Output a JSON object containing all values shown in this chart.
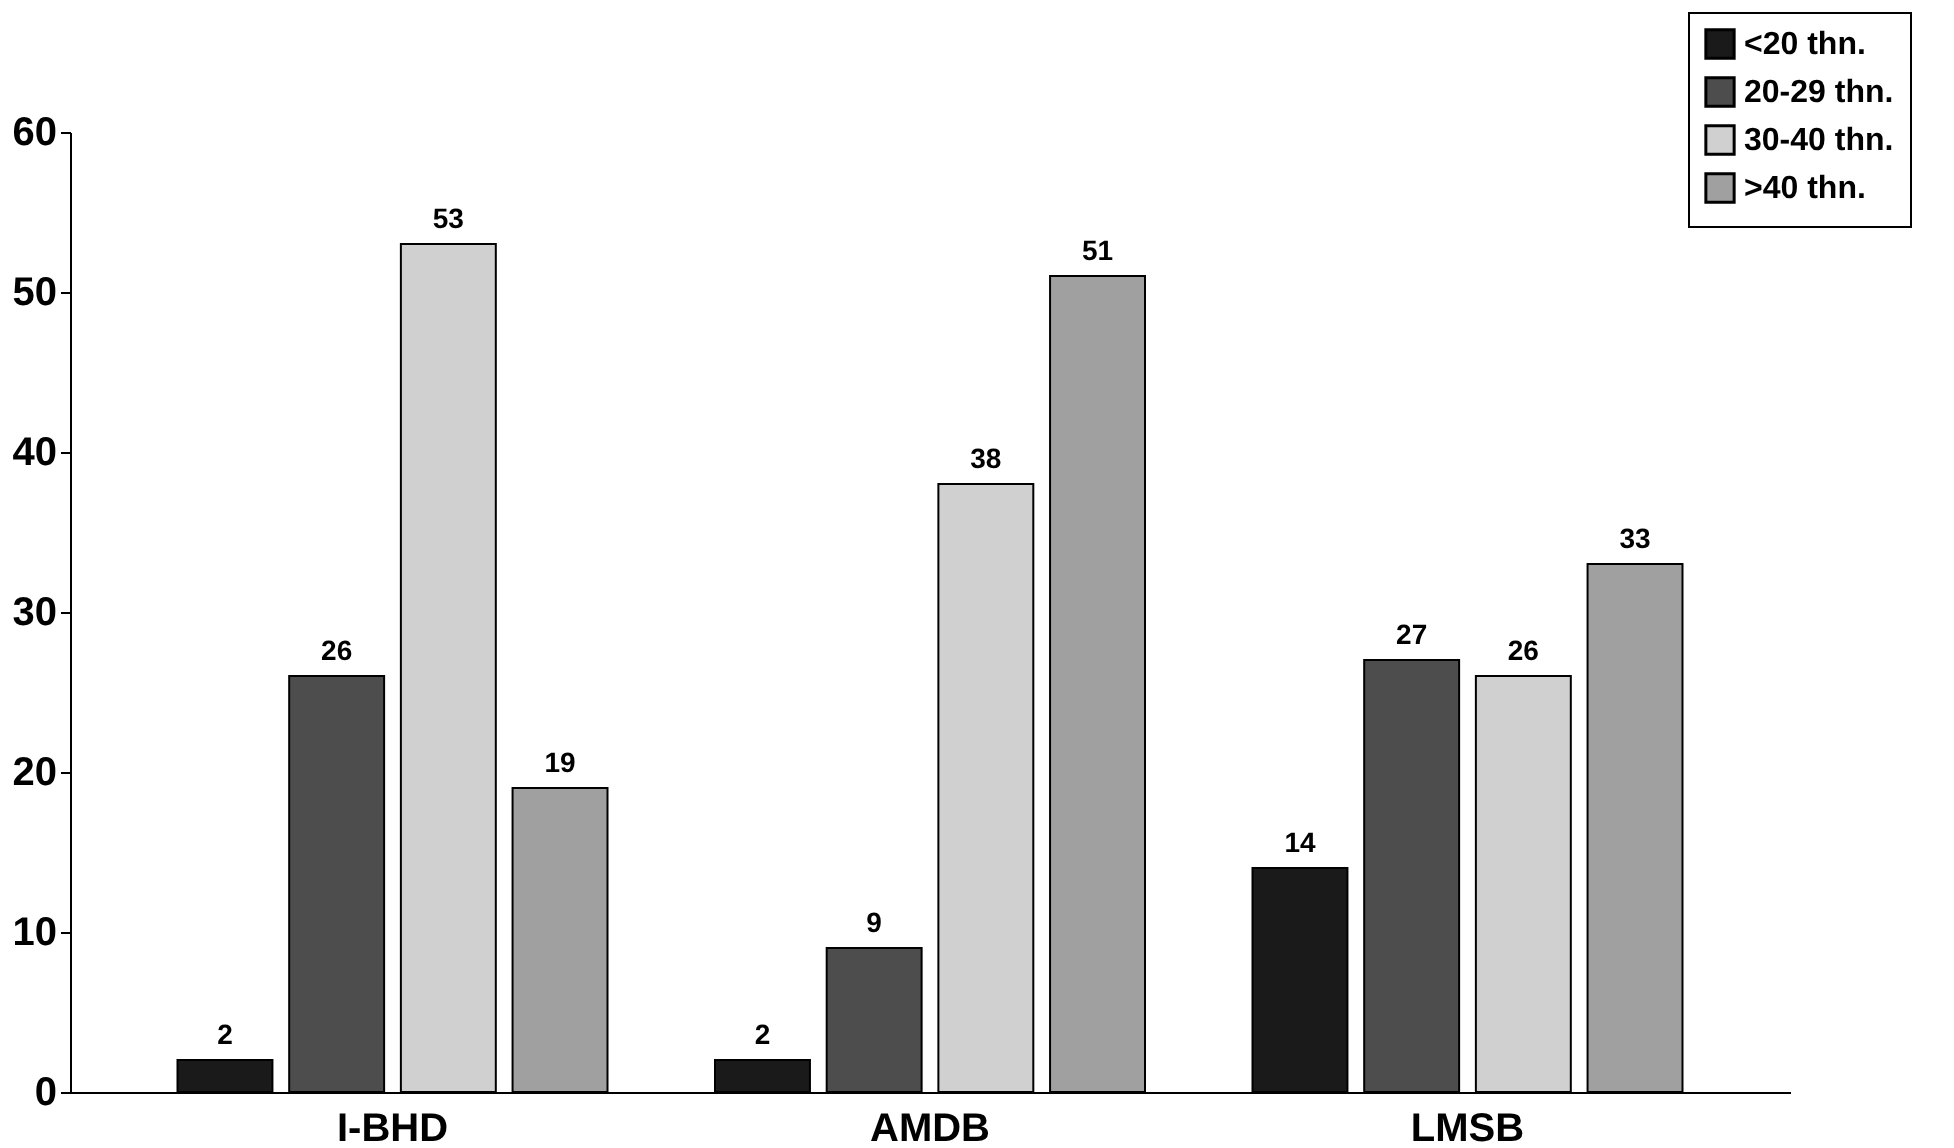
{
  "chart_data": {
    "type": "bar",
    "categories": [
      "I-BHD",
      "AMDB",
      "LMSB"
    ],
    "series": [
      {
        "name": "<20 thn.",
        "color": "#1a1a1a",
        "values": [
          2,
          2,
          14
        ]
      },
      {
        "name": "20-29 thn.",
        "color": "#4d4d4d",
        "values": [
          26,
          9,
          27
        ]
      },
      {
        "name": "30-40 thn.",
        "color": "#d0d0d0",
        "values": [
          53,
          38,
          26
        ]
      },
      {
        "name": ">40 thn.",
        "color": "#a0a0a0",
        "values": [
          19,
          51,
          33
        ]
      }
    ],
    "ylim": [
      0,
      60
    ],
    "yticks": [
      0,
      10,
      20,
      30,
      40,
      50,
      60
    ],
    "grid": false,
    "legend": "top right",
    "data_labels": true
  }
}
